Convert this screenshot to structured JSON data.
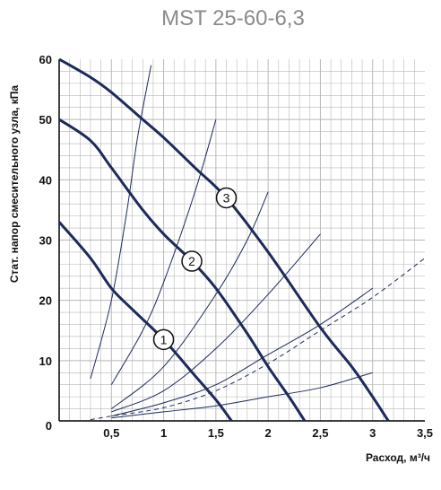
{
  "chart_data": {
    "type": "line",
    "title": "MST 25-60-6,3",
    "xlabel": "Расход, м³/ч",
    "ylabel": "Стат. напор смесительного узла, кПа",
    "xlim": [
      0,
      3.5
    ],
    "ylim": [
      0,
      60
    ],
    "x_ticks": [
      "0,5",
      "1",
      "1,5",
      "2",
      "2,5",
      "3",
      "3,5"
    ],
    "y_ticks": [
      "0",
      "10",
      "20",
      "30",
      "40",
      "50",
      "60"
    ],
    "grid": true,
    "pump_curves": [
      {
        "label": "1",
        "label_at": [
          1.0,
          13.5
        ],
        "points": [
          [
            0,
            33
          ],
          [
            0.3,
            27
          ],
          [
            0.5,
            22
          ],
          [
            0.7,
            18.5
          ],
          [
            1.0,
            13.5
          ],
          [
            1.3,
            7.5
          ],
          [
            1.5,
            3.5
          ],
          [
            1.65,
            0
          ]
        ]
      },
      {
        "label": "2",
        "label_at": [
          1.27,
          26.5
        ],
        "points": [
          [
            0,
            50
          ],
          [
            0.3,
            46.5
          ],
          [
            0.5,
            42
          ],
          [
            0.8,
            35
          ],
          [
            1.0,
            31
          ],
          [
            1.27,
            26.5
          ],
          [
            1.5,
            22
          ],
          [
            1.8,
            14.5
          ],
          [
            2.0,
            9
          ],
          [
            2.2,
            4
          ],
          [
            2.35,
            0
          ]
        ]
      },
      {
        "label": "3",
        "label_at": [
          1.6,
          37
        ],
        "points": [
          [
            0,
            60
          ],
          [
            0.3,
            57
          ],
          [
            0.5,
            54.5
          ],
          [
            0.8,
            50
          ],
          [
            1.0,
            47
          ],
          [
            1.3,
            42
          ],
          [
            1.6,
            37
          ],
          [
            2.0,
            28
          ],
          [
            2.5,
            15.5
          ],
          [
            2.8,
            9
          ],
          [
            3.0,
            4
          ],
          [
            3.15,
            0
          ]
        ]
      }
    ],
    "system_curves": [
      {
        "dashed": false,
        "points": [
          [
            0.3,
            7
          ],
          [
            0.5,
            20
          ],
          [
            0.65,
            35
          ],
          [
            0.75,
            47
          ],
          [
            0.88,
            59
          ]
        ]
      },
      {
        "dashed": false,
        "points": [
          [
            0.5,
            6
          ],
          [
            0.8,
            15
          ],
          [
            1.0,
            23
          ],
          [
            1.3,
            38
          ],
          [
            1.5,
            50
          ]
        ]
      },
      {
        "dashed": false,
        "points": [
          [
            0.5,
            2
          ],
          [
            1.0,
            9
          ],
          [
            1.5,
            21
          ],
          [
            1.8,
            30
          ],
          [
            2.0,
            38
          ]
        ]
      },
      {
        "dashed": false,
        "points": [
          [
            0.5,
            1.5
          ],
          [
            1.0,
            5
          ],
          [
            1.5,
            12
          ],
          [
            2.0,
            21
          ],
          [
            2.5,
            31
          ]
        ]
      },
      {
        "dashed": false,
        "points": [
          [
            0.5,
            0.8
          ],
          [
            1.0,
            3
          ],
          [
            1.5,
            6
          ],
          [
            2.0,
            11
          ],
          [
            2.5,
            16
          ],
          [
            3.0,
            22
          ]
        ]
      },
      {
        "dashed": false,
        "points": [
          [
            0.5,
            0.5
          ],
          [
            1.0,
            1.5
          ],
          [
            1.5,
            2.5
          ],
          [
            2.0,
            4
          ],
          [
            2.5,
            5.5
          ],
          [
            3.0,
            8
          ]
        ]
      },
      {
        "dashed": true,
        "points": [
          [
            0.3,
            0.2
          ],
          [
            0.5,
            0.8
          ],
          [
            1.0,
            2.2
          ],
          [
            1.5,
            5
          ],
          [
            2.0,
            9.5
          ],
          [
            2.5,
            15
          ],
          [
            3.0,
            20.5
          ],
          [
            3.5,
            27
          ]
        ]
      }
    ],
    "colors": {
      "pump": "#1c2b5a",
      "system": "#1c2b5a",
      "grid": "#b8b8b8",
      "title": "#8a8a8a"
    }
  }
}
